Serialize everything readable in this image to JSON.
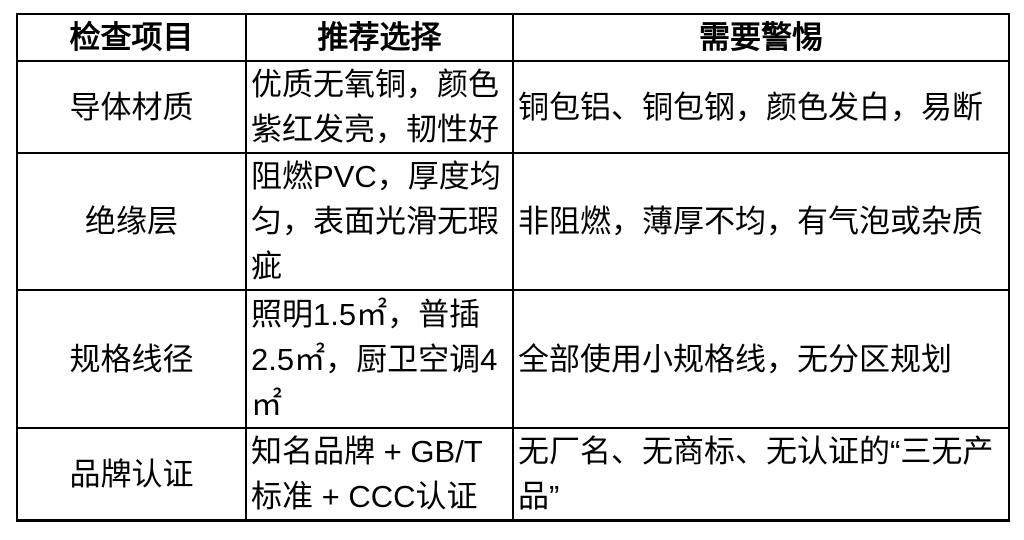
{
  "table": {
    "title": "wire-inspection-checklist",
    "headers": {
      "item": "检查项目",
      "recommended": "推荐选择",
      "warning": "需要警惕"
    },
    "rows": [
      {
        "item": "导体材质",
        "recommended": "优质无氧铜，颜色紫红发亮，韧性好",
        "warning": "铜包铝、铜包钢，颜色发白，易断"
      },
      {
        "item": "绝缘层",
        "recommended": "阻燃PVC，厚度均匀，表面光滑无瑕疵",
        "warning": "非阻燃，薄厚不均，有气泡或杂质"
      },
      {
        "item": "规格线径",
        "recommended": "照明1.5㎡，普插2.5㎡，厨卫空调4㎡",
        "warning": "全部使用小规格线，无分区规划"
      },
      {
        "item": "品牌认证",
        "recommended": "知名品牌 + GB/T标准 + CCC认证",
        "warning": "无厂名、无商标、无认证的“三无产品”"
      }
    ],
    "colors": {
      "border": "#000000",
      "text": "#000000",
      "background": "#ffffff"
    }
  }
}
